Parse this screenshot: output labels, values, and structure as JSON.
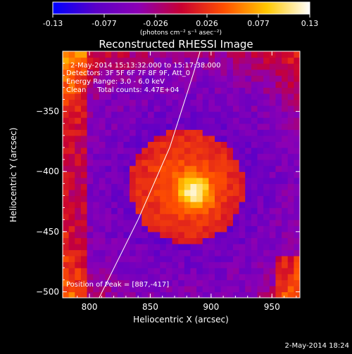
{
  "colorbar": {
    "ticks": [
      "-0.13",
      "-0.077",
      "-0.026",
      "0.026",
      "0.077",
      "0.13"
    ],
    "units": "(photons cm⁻² s⁻¹ asec⁻²)",
    "colors": [
      "#0000ff",
      "#5a00c8",
      "#8c00b4",
      "#c80032",
      "#ff5000",
      "#ffc800",
      "#ffffff"
    ]
  },
  "chart_data": {
    "type": "heatmap",
    "title": "Reconstructed RHESSI Image",
    "xlabel": "Heliocentric X (arcsec)",
    "ylabel": "Heliocentric Y (arcsec)",
    "xlim": [
      778,
      973
    ],
    "ylim": [
      -505,
      -300
    ],
    "x_ticks": [
      800,
      850,
      900,
      950
    ],
    "y_ticks": [
      -350,
      -400,
      -450,
      -500
    ],
    "x_tick_labels": [
      "800",
      "850",
      "900",
      "950"
    ],
    "y_tick_labels": [
      "-350",
      "-400",
      "-450",
      "-500"
    ],
    "colormap": [
      "#0000ff",
      "#5a00c8",
      "#8c00b4",
      "#c80032",
      "#ff5000",
      "#ffc800",
      "#ffffff"
    ],
    "value_range": [
      -0.13,
      0.13
    ],
    "peak": [
      887,
      -417
    ],
    "source_center": [
      880,
      -412
    ],
    "source_radius_arcsec": 47,
    "limb_curve": [
      [
        808,
        -505
      ],
      [
        840,
        -440
      ],
      [
        866,
        -380
      ],
      [
        885,
        -320
      ],
      [
        891,
        -300
      ]
    ],
    "info_lines": [
      "2-May-2014 15:13:32.000 to 15:17:38.000",
      "Detectors: 3F 5F 6F 7F 8F 9F, Att_0",
      "Energy Range: 3.0 - 6.0 keV",
      "Clean     Total counts: 4.47E+04"
    ],
    "peak_label": "Position of Peak = [887,-417]"
  },
  "footer": {
    "timestamp": "2-May-2014 18:24"
  }
}
